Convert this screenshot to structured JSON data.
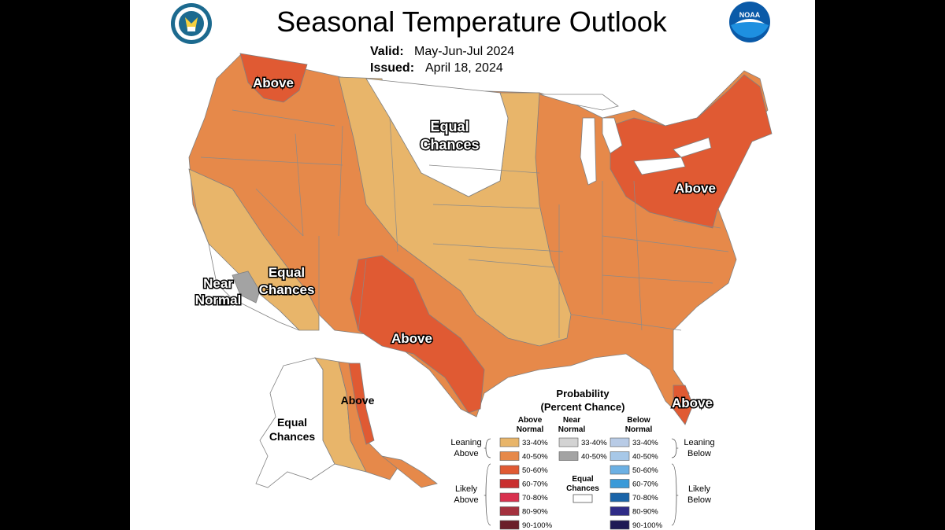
{
  "title": "Seasonal Temperature Outlook",
  "valid": {
    "label": "Valid:",
    "value": "May-Jun-Jul 2024"
  },
  "issued": {
    "label": "Issued:",
    "value": "April 18, 2024"
  },
  "logos": {
    "left": "Department of Commerce seal",
    "right_text": "NOAA"
  },
  "map_labels": {
    "above_nw": "Above",
    "equal_north_1": "Equal",
    "equal_north_2": "Chances",
    "above_ne": "Above",
    "near_normal_1": "Near",
    "near_normal_2": "Normal",
    "equal_sw_1": "Equal",
    "equal_sw_2": "Chances",
    "above_tx": "Above",
    "above_fl": "Above",
    "above_ak": "Above",
    "equal_ak_1": "Equal",
    "equal_ak_2": "Chances"
  },
  "legend": {
    "heading_1": "Probability",
    "heading_2": "(Percent Chance)",
    "col_above_1": "Above",
    "col_above_2": "Normal",
    "col_near_1": "Near",
    "col_near_2": "Normal",
    "col_below_1": "Below",
    "col_below_2": "Normal",
    "leaning_above_1": "Leaning",
    "leaning_above_2": "Above",
    "likely_above_1": "Likely",
    "likely_above_2": "Above",
    "leaning_below_1": "Leaning",
    "leaning_below_2": "Below",
    "likely_below_1": "Likely",
    "likely_below_2": "Below",
    "equal_1": "Equal",
    "equal_2": "Chances",
    "above_items": [
      {
        "label": "33-40%",
        "color": "#e8b56a"
      },
      {
        "label": "40-50%",
        "color": "#e6894a"
      },
      {
        "label": "50-60%",
        "color": "#e05a33"
      },
      {
        "label": "60-70%",
        "color": "#c92e2e"
      },
      {
        "label": "70-80%",
        "color": "#d8314e"
      },
      {
        "label": "80-90%",
        "color": "#a4313e"
      },
      {
        "label": "90-100%",
        "color": "#6b1f2a"
      }
    ],
    "near_items": [
      {
        "label": "33-40%",
        "color": "#d3d3d3"
      },
      {
        "label": "40-50%",
        "color": "#a3a3a3"
      }
    ],
    "below_items": [
      {
        "label": "33-40%",
        "color": "#b8cbe6"
      },
      {
        "label": "40-50%",
        "color": "#a7c8e8"
      },
      {
        "label": "50-60%",
        "color": "#6cb0e3"
      },
      {
        "label": "60-70%",
        "color": "#3a9ad8"
      },
      {
        "label": "70-80%",
        "color": "#1a64a8"
      },
      {
        "label": "80-90%",
        "color": "#2f2b86"
      },
      {
        "label": "90-100%",
        "color": "#1f1a55"
      }
    ]
  }
}
